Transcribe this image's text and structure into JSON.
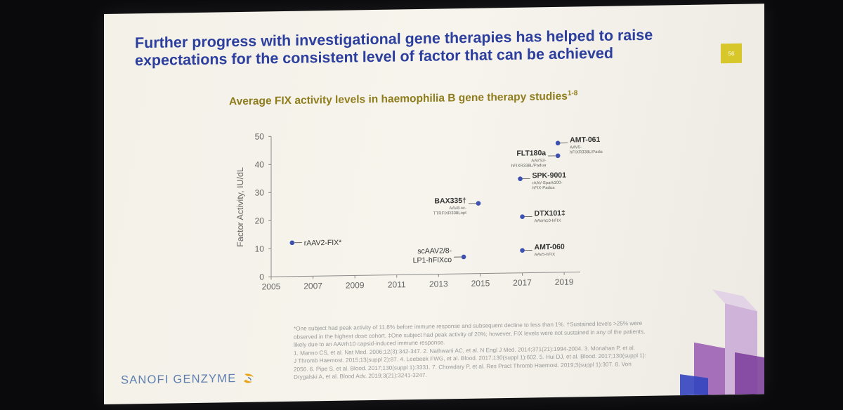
{
  "slide": {
    "title_line1": "Further progress with investigational gene therapies has helped to raise",
    "title_line2": "expectations for the consistent level of factor that can be achieved",
    "page_number": "56",
    "logo_text": "SANOFI GENZYME"
  },
  "chart_data": {
    "type": "scatter",
    "title": "Average FIX activity levels in haemophilia B gene therapy studies",
    "title_superscript": "1-8",
    "ylabel": "Factor Activity, IU/dL",
    "xlabel": "",
    "xlim": [
      2005,
      2019.5
    ],
    "ylim": [
      0,
      50
    ],
    "x_ticks": [
      "2005",
      "2007",
      "2009",
      "2011",
      "2013",
      "2015",
      "2017",
      "2019"
    ],
    "y_ticks": [
      "0",
      "10",
      "20",
      "30",
      "40",
      "50"
    ],
    "points": [
      {
        "x": 2006.0,
        "y": 12,
        "label": "rAAV2-FIX*",
        "sublabel": "",
        "side": "right"
      },
      {
        "x": 2014.2,
        "y": 6,
        "label": "scAAV2/8-",
        "label2": "LP1-hFIXco",
        "sublabel": "",
        "side": "left"
      },
      {
        "x": 2014.9,
        "y": 25,
        "label": "BAX335†",
        "sublabel": "AAV8.sc-",
        "sublabel2": "TTRFIXR338Lopt",
        "side": "left"
      },
      {
        "x": 2017.0,
        "y": 8,
        "label": "AMT-060",
        "sublabel": "AAV5-hFIX",
        "side": "right"
      },
      {
        "x": 2017.0,
        "y": 20,
        "label": "DTX101‡",
        "sublabel": "AAVrh10-hFIX",
        "side": "right"
      },
      {
        "x": 2016.9,
        "y": 33.5,
        "label": "SPK-9001",
        "sublabel": "rAAV-Spark100-",
        "sublabel2": "hFIX-Padua",
        "side": "right"
      },
      {
        "x": 2018.7,
        "y": 41.5,
        "label": "FLT180a",
        "sublabel": "AAVS3-",
        "sublabel2": "hFIXR338L/Padua",
        "side": "left"
      },
      {
        "x": 2018.7,
        "y": 46,
        "label": "AMT-061",
        "sublabel": "AAV5-",
        "sublabel2": "hFIXR338L/Padua",
        "side": "right"
      }
    ],
    "grid": false,
    "marker_color": "#3d52b0"
  },
  "footnotes": {
    "line1": "*One subject had peak activity of 11.8% before immune response and subsequent decline to less than 1%. †Sustained levels >25% were",
    "line2": "observed in the highest dose cohort. ‡One subject had peak activity of 20%; however, FIX levels were not sustained in any of the patients,",
    "line3": "likely due to an AAVrh10 capsid-induced immune response.",
    "ref1": "1. Manno CS, et al. Nat Med. 2006;12(3):342-347. 2. Nathwani AC, et al. N Engl J Med. 2014;371(21):1994-2004. 3. Monahan P, et al.",
    "ref2": "J Thromb Haemost. 2015;13(suppl 2):87. 4. Leebeek FWG, et al. Blood. 2017;130(suppl 1):602. 5. Hui DJ, et al. Blood. 2017;130(suppl 1):",
    "ref3": "2056. 6. Pipe S, et al. Blood. 2017;130(suppl 1):3331. 7. Chowdary P, et al. Res Pract Thromb Haemost. 2019;3(suppl 1):307. 8. Von",
    "ref4": "Drygalski A, et al. Blood Adv. 2019;3(21):3241-3247."
  }
}
